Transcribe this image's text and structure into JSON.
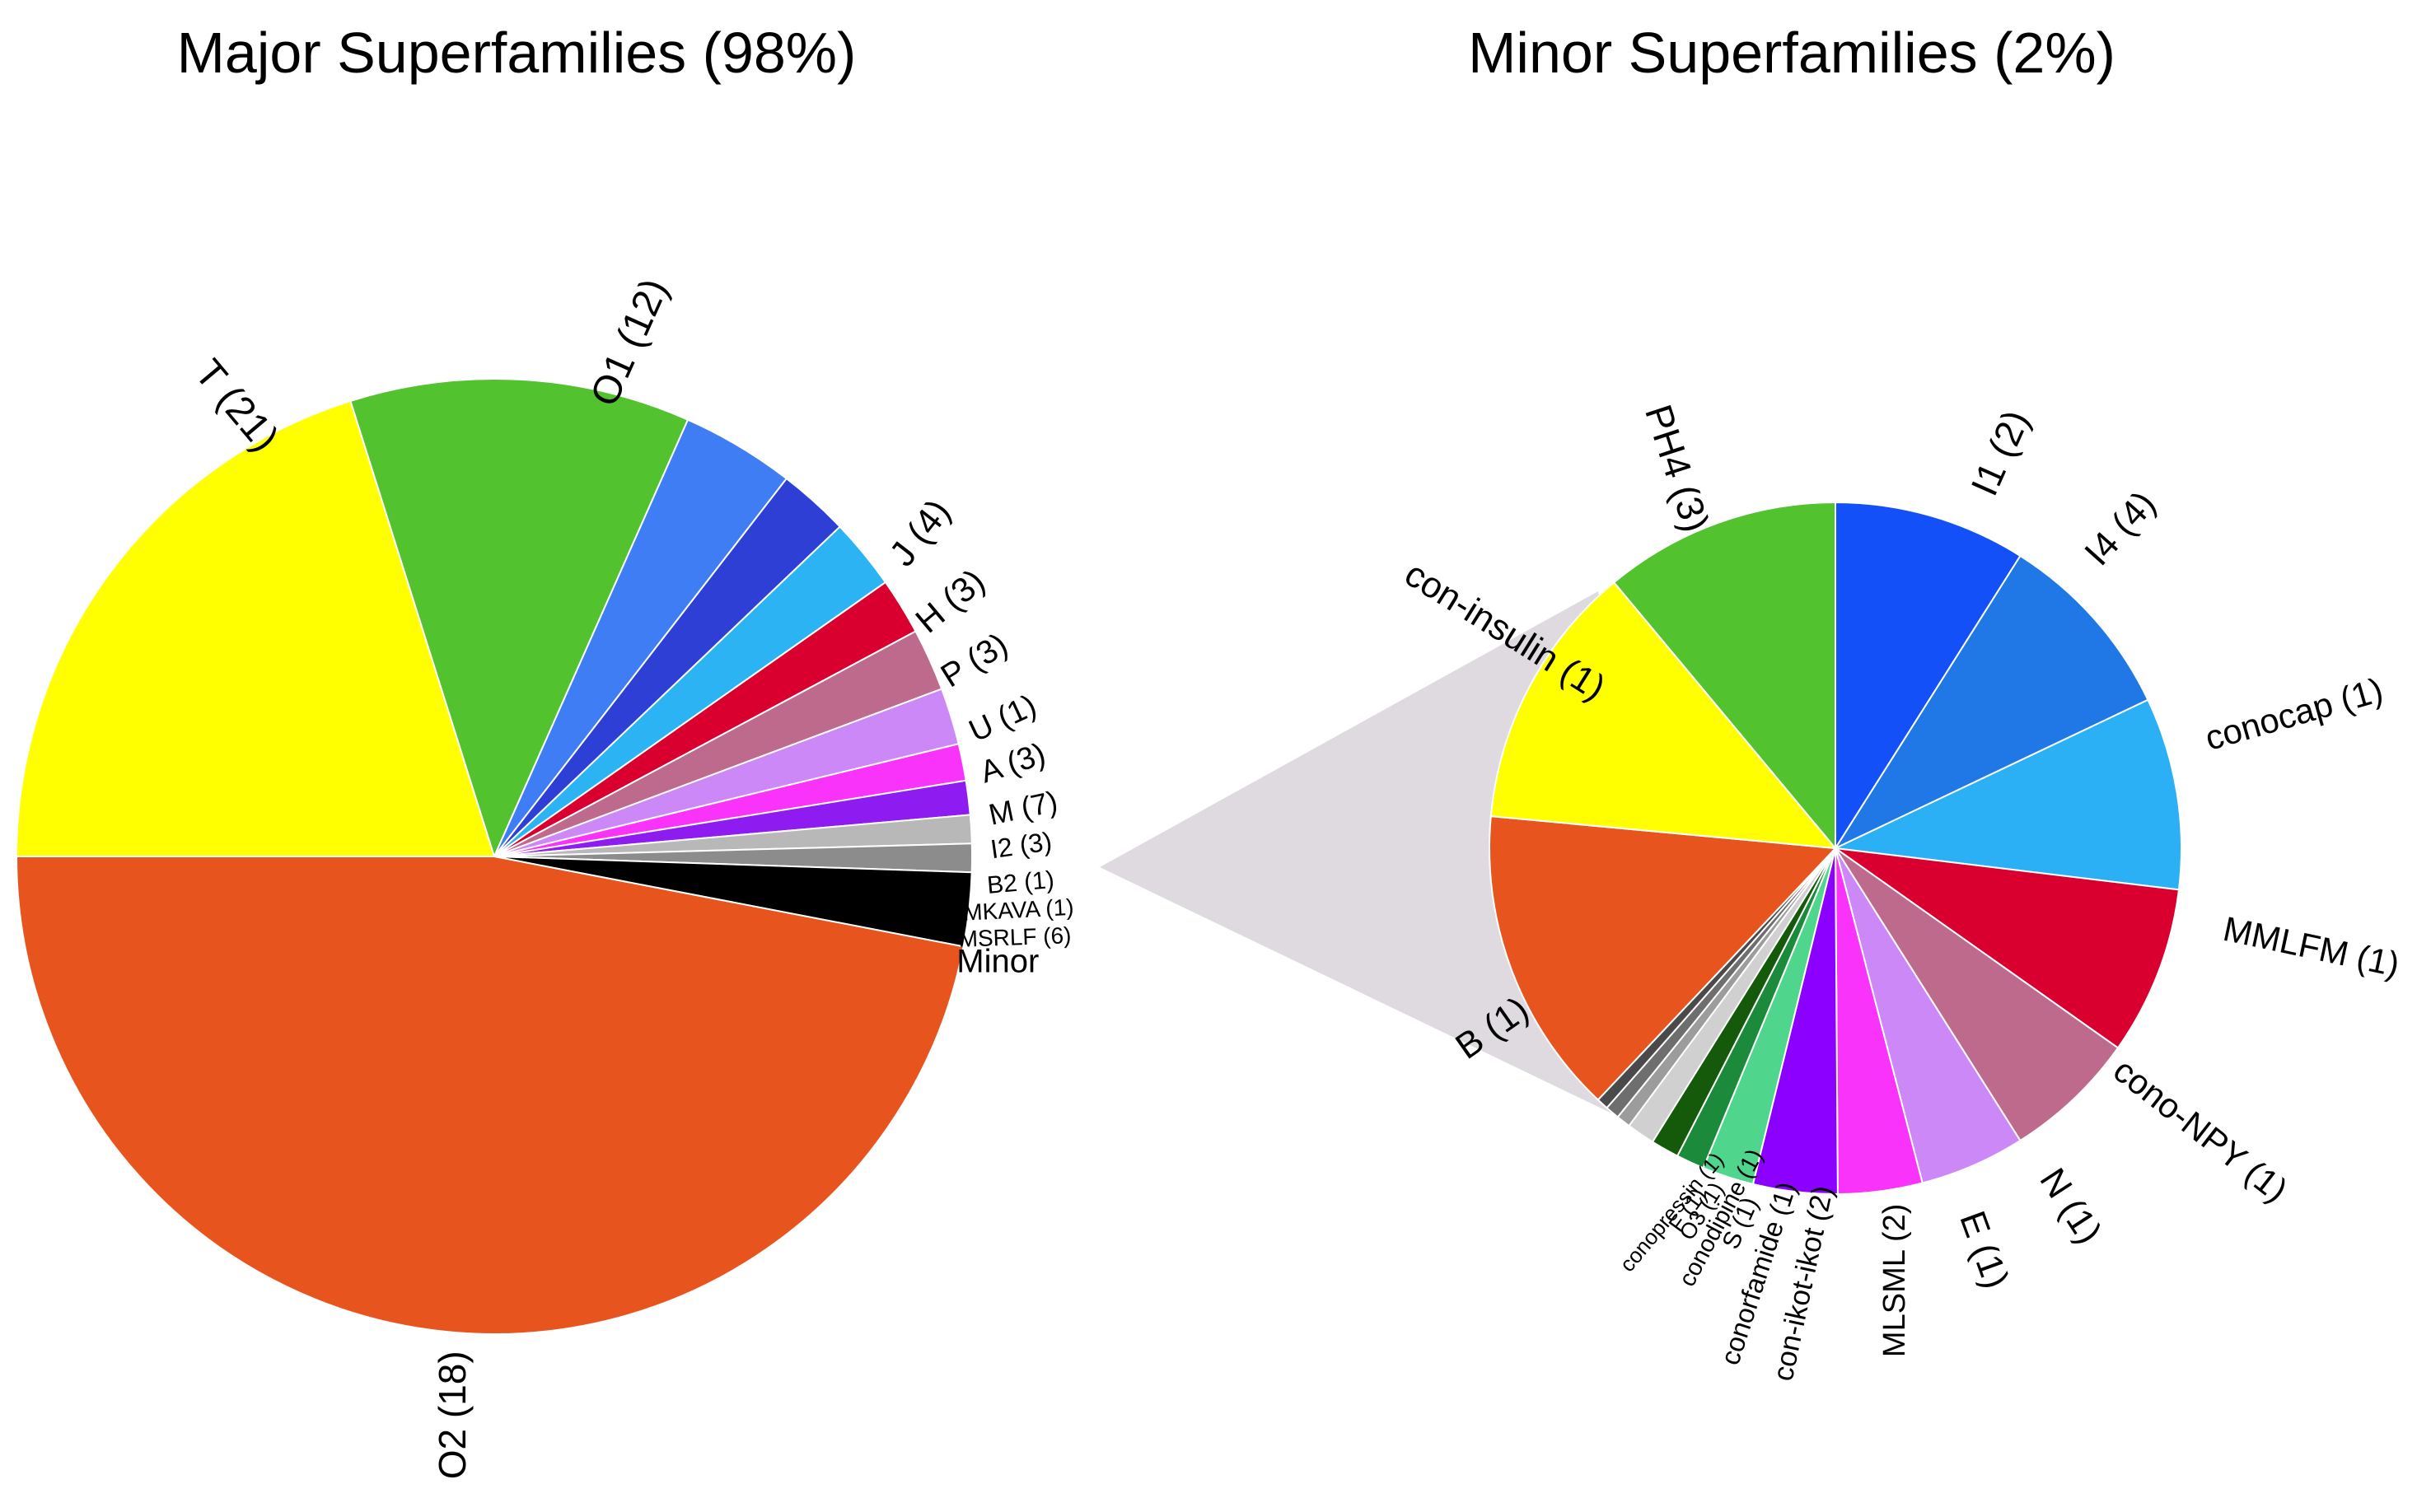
{
  "chart_data": [
    {
      "type": "pie",
      "title": "Major Superfamilies (98%)",
      "start": "9 o'clock, clockwise",
      "slices": [
        {
          "label": "T (21)",
          "value": 21,
          "color": "#FFFF00"
        },
        {
          "label": "O1 (12)",
          "value": 12,
          "color": "#52C22E"
        },
        {
          "label": "J (4)",
          "value": 4,
          "color": "#3F7DF4"
        },
        {
          "label": "H (3)",
          "value": 2.5,
          "color": "#2E3FD6"
        },
        {
          "label": "P (3)",
          "value": 2.5,
          "color": "#2BB3F3"
        },
        {
          "label": "U (1)",
          "value": 2,
          "color": "#D90030"
        },
        {
          "label": "A (3)",
          "value": 2.2,
          "color": "#BE6A8C"
        },
        {
          "label": "M (7)",
          "value": 2,
          "color": "#CC88F6"
        },
        {
          "label": "I2 (3)",
          "value": 1.3,
          "color": "#FA33FA"
        },
        {
          "label": "B2 (1)",
          "value": 1.2,
          "color": "#8E1CF0"
        },
        {
          "label": "MKAVA (1)",
          "value": 1,
          "color": "#B8B8B8"
        },
        {
          "label": "MSRLF (6)",
          "value": 1,
          "color": "#8C8C8C"
        },
        {
          "label": "Minor",
          "value": 2.6,
          "color": "#000000"
        },
        {
          "label": "O2 (18)",
          "value": 49,
          "color": "#E8541D"
        }
      ]
    },
    {
      "type": "pie",
      "title": "Minor Superfamilies (2%)",
      "start": "12 o'clock, clockwise",
      "slices": [
        {
          "label": "I1 (2)",
          "value": 8.2,
          "color": "#1450F7"
        },
        {
          "label": "I4 (4)",
          "value": 8.2,
          "color": "#2078E7"
        },
        {
          "label": "conocap (1)",
          "value": 8.2,
          "color": "#2BB0F5"
        },
        {
          "label": "MMLFM (1)",
          "value": 7.2,
          "color": "#D90030"
        },
        {
          "label": "cono-NPY (1)",
          "value": 5.7,
          "color": "#BE6A8C"
        },
        {
          "label": "N (1)",
          "value": 4.5,
          "color": "#CC88F6"
        },
        {
          "label": "E (1)",
          "value": 3.6,
          "color": "#FA33FA"
        },
        {
          "label": "MLSML (2)",
          "value": 3.6,
          "color": "#8B00FF"
        },
        {
          "label": "con-ikot-ikot (2)",
          "value": 2.2,
          "color": "#4FD68C"
        },
        {
          "label": "conorfamide (1)",
          "value": 1.2,
          "color": "#1B8A3A"
        },
        {
          "label": "S (1)",
          "value": 1.2,
          "color": "#145A0A"
        },
        {
          "label": "conodipine (1)",
          "value": 1.2,
          "color": "#D0D0D0"
        },
        {
          "label": "O3 (1)",
          "value": 0.6,
          "color": "#9C9C9C"
        },
        {
          "label": "F (1)",
          "value": 0.6,
          "color": "#6E6E6E"
        },
        {
          "label": "conopressin (1)",
          "value": 0.5,
          "color": "#4A4A4A"
        },
        {
          "label": "B (1)",
          "value": 13.2,
          "color": "#E8541D"
        },
        {
          "label": "con-insulin (1)",
          "value": 11.4,
          "color": "#FFFF00"
        },
        {
          "label": "PH4 (3)",
          "value": 10.1,
          "color": "#52C22E"
        }
      ]
    }
  ],
  "connector_color": "#DEDADF"
}
